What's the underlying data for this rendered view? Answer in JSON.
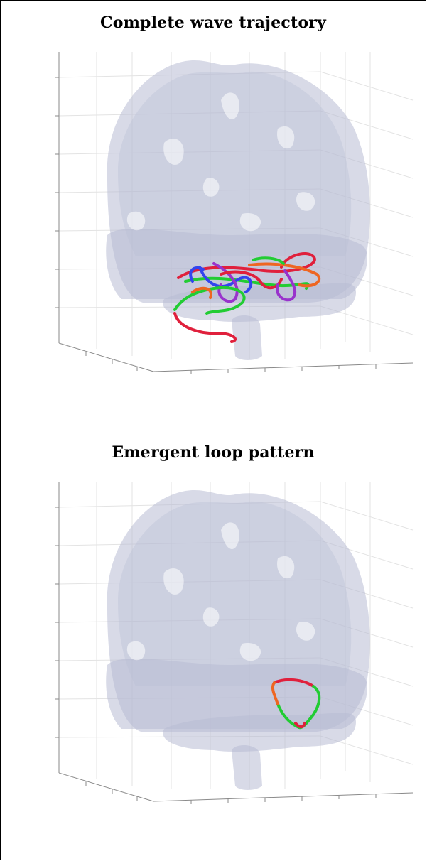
{
  "panels": [
    {
      "title": "Complete wave trajectory"
    },
    {
      "title": "Emergent loop pattern"
    }
  ],
  "colors": {
    "brain": "#b8bcd4",
    "grid": "#e3e3e3",
    "axis": "#8a8a8a",
    "trajectory": [
      "#e0203c",
      "#22cc33",
      "#3344ee",
      "#9933cc",
      "#ee6622"
    ]
  }
}
